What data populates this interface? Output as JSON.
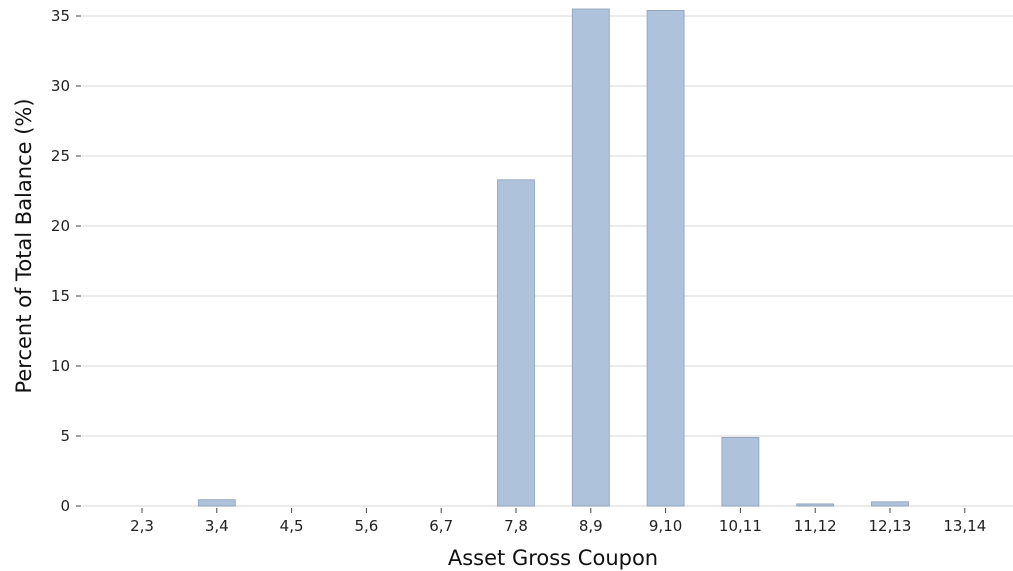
{
  "chart_data": {
    "type": "bar",
    "title": "",
    "xlabel": "Asset Gross Coupon",
    "ylabel": "Percent of Total Balance (%)",
    "categories": [
      "2,3",
      "3,4",
      "4,5",
      "5,6",
      "6,7",
      "7,8",
      "8,9",
      "9,10",
      "10,11",
      "11,12",
      "12,13",
      "13,14"
    ],
    "values": [
      0,
      0.45,
      0,
      0,
      0,
      23.3,
      35.5,
      35.4,
      4.9,
      0.15,
      0.3,
      0
    ],
    "yticks": [
      0,
      5,
      10,
      15,
      20,
      25,
      30,
      35
    ],
    "ylim": [
      0,
      35.5
    ],
    "grid": "horizontal",
    "colors": {
      "bar_fill": "#aec2dc",
      "bar_edge": "#8e9fb8",
      "grid": "#ebebeb"
    }
  }
}
